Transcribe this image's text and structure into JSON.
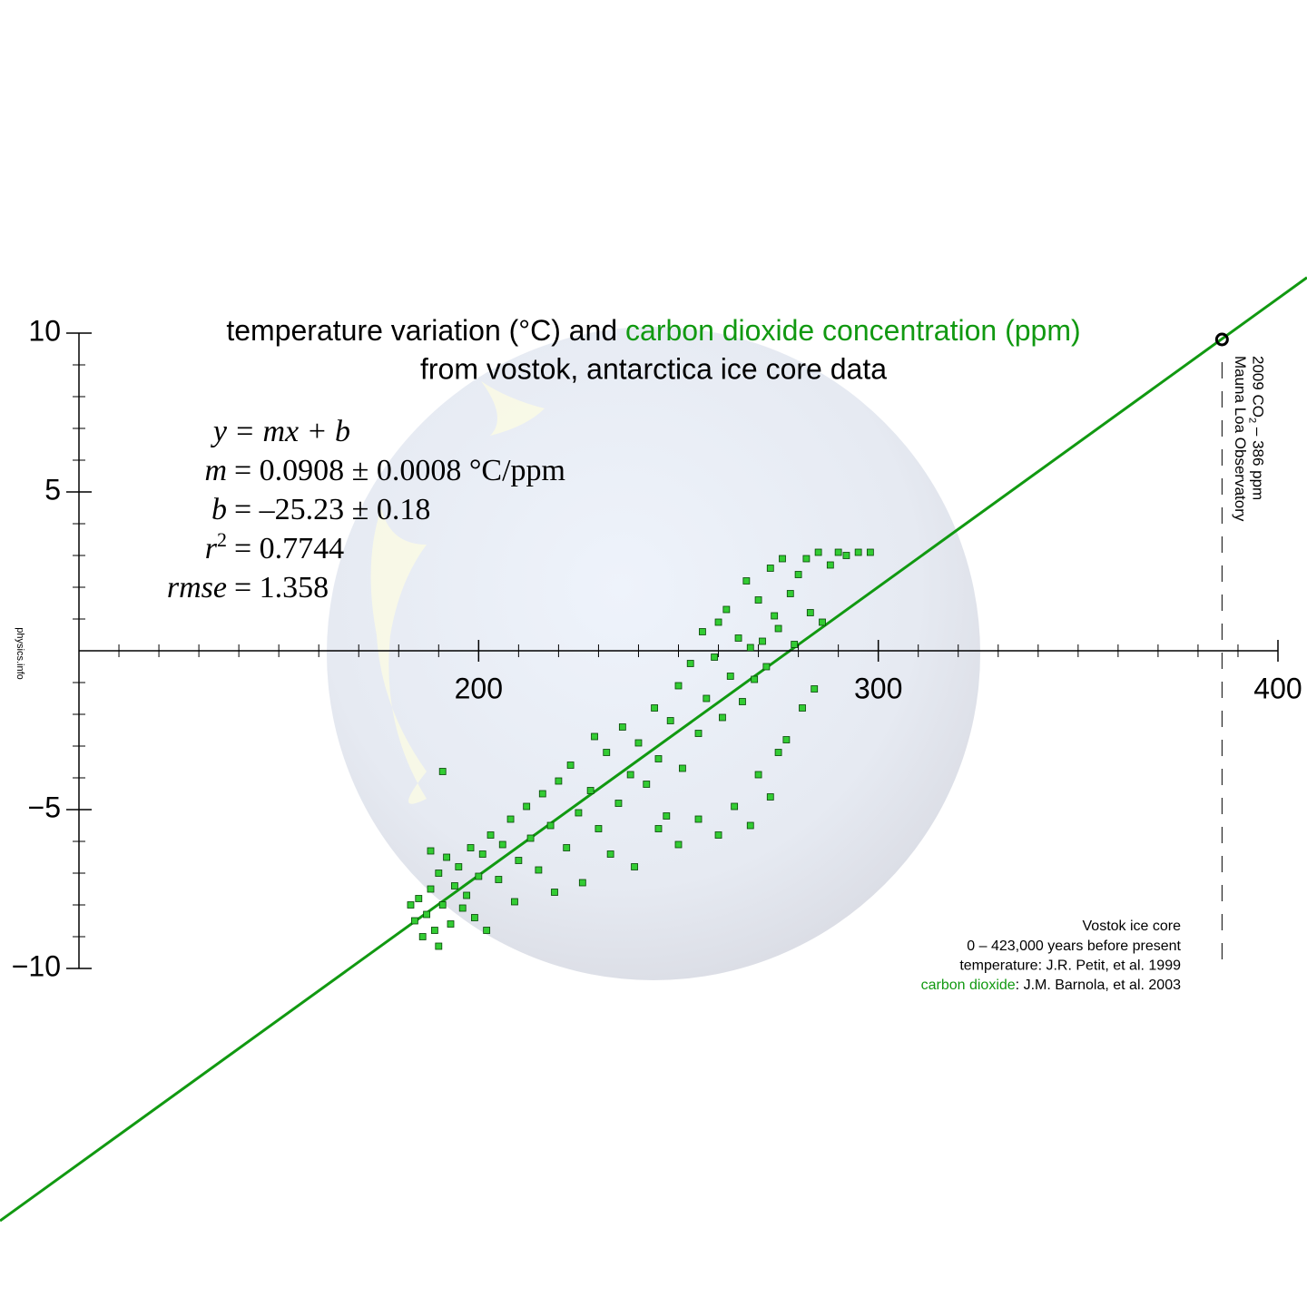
{
  "chart_data": {
    "type": "scatter",
    "title": {
      "text": "temperature variation (°C) and ",
      "highlight": "carbon dioxide concentration (ppm)"
    },
    "subtitle": "from vostok, antarctica ice core data",
    "color": "#33cc33",
    "highlight_color": "#119911",
    "x": [
      183,
      184,
      185,
      186,
      187,
      188,
      189,
      190,
      190,
      191,
      192,
      193,
      194,
      195,
      196,
      197,
      198,
      199,
      200,
      201,
      202,
      188,
      191,
      203,
      205,
      206,
      208,
      209,
      210,
      212,
      213,
      215,
      216,
      218,
      219,
      220,
      222,
      223,
      225,
      226,
      228,
      229,
      230,
      232,
      233,
      235,
      236,
      238,
      239,
      240,
      242,
      244,
      245,
      247,
      248,
      250,
      251,
      253,
      255,
      256,
      257,
      259,
      260,
      261,
      262,
      263,
      265,
      266,
      267,
      268,
      269,
      270,
      271,
      272,
      273,
      274,
      275,
      245,
      250,
      255,
      260,
      264,
      268,
      270,
      273,
      275,
      276,
      278,
      279,
      280,
      281,
      282,
      283,
      285,
      286,
      288,
      290,
      292,
      295,
      298,
      284,
      277
    ],
    "values": [
      -8,
      -8.5,
      -7.8,
      -9,
      -8.3,
      -7.5,
      -8.8,
      -9.3,
      -7,
      -8,
      -6.5,
      -8.6,
      -7.4,
      -6.8,
      -8.1,
      -7.7,
      -6.2,
      -8.4,
      -7.1,
      -6.4,
      -8.8,
      -6.3,
      -3.8,
      -5.8,
      -7.2,
      -6.1,
      -5.3,
      -7.9,
      -6.6,
      -4.9,
      -5.9,
      -6.9,
      -4.5,
      -5.5,
      -7.6,
      -4.1,
      -6.2,
      -3.6,
      -5.1,
      -7.3,
      -4.4,
      -2.7,
      -5.6,
      -3.2,
      -6.4,
      -4.8,
      -2.4,
      -3.9,
      -6.8,
      -2.9,
      -4.2,
      -1.8,
      -3.4,
      -5.2,
      -2.2,
      -1.1,
      -3.7,
      -0.4,
      -2.6,
      0.6,
      -1.5,
      -0.2,
      0.9,
      -2.1,
      1.3,
      -0.8,
      0.4,
      -1.6,
      2.2,
      0.1,
      -0.9,
      1.6,
      0.3,
      -0.5,
      2.6,
      1.1,
      0.7,
      -5.6,
      -6.1,
      -5.3,
      -5.8,
      -4.9,
      -5.5,
      -3.9,
      -4.6,
      -3.2,
      2.9,
      1.8,
      0.2,
      2.4,
      -1.8,
      2.9,
      1.2,
      3.1,
      0.9,
      2.7,
      3.1,
      3.0,
      3.1,
      3.1,
      -1.2,
      -2.8
    ],
    "xlim": [
      100,
      400
    ],
    "ylim": [
      -10,
      10
    ],
    "xticks": [
      200,
      300,
      400
    ],
    "yticks": [
      {
        "value": -10,
        "label": "−10"
      },
      {
        "value": -5,
        "label": "−5"
      },
      5,
      10
    ],
    "xticks_minor": [
      110,
      120,
      130,
      140,
      150,
      160,
      170,
      180,
      190,
      210,
      220,
      230,
      240,
      250,
      260,
      270,
      280,
      290,
      310,
      320,
      330,
      340,
      350,
      360,
      370,
      380,
      390
    ],
    "yticks_minor": [
      -9,
      -8,
      -7,
      -6,
      -4,
      -3,
      -2,
      -1,
      1,
      2,
      3,
      4,
      6,
      7,
      8,
      9
    ],
    "fit": {
      "slope": 0.0908,
      "intercept": -25.23
    },
    "equations": [
      {
        "lhs": "y",
        "rhs": "= mx + b"
      },
      {
        "lhs": "m",
        "rhs": "= 0.0908 ± 0.0008 °C/ppm"
      },
      {
        "lhs": "b",
        "rhs": "= –25.23 ± 0.18"
      },
      {
        "lhs": "r",
        "sup": "2",
        "rhs": "= 0.7744"
      },
      {
        "lhs": "rmse",
        "rhs": "= 1.358"
      }
    ],
    "reference_point": {
      "x": 386,
      "y": 9.8,
      "label_parts": [
        "2009 CO",
        "2",
        " – 386 ppm"
      ],
      "label2": "Mauna Loa Observatory"
    },
    "source": {
      "lines": [
        "Vostok ice core",
        "0 – 423,000 years before present",
        "temperature: J.R. Petit, et al. 1999"
      ],
      "highlight": "carbon dioxide",
      "rest": ": J.M. Barnola, et al. 2003"
    },
    "credit": "physics.info"
  }
}
